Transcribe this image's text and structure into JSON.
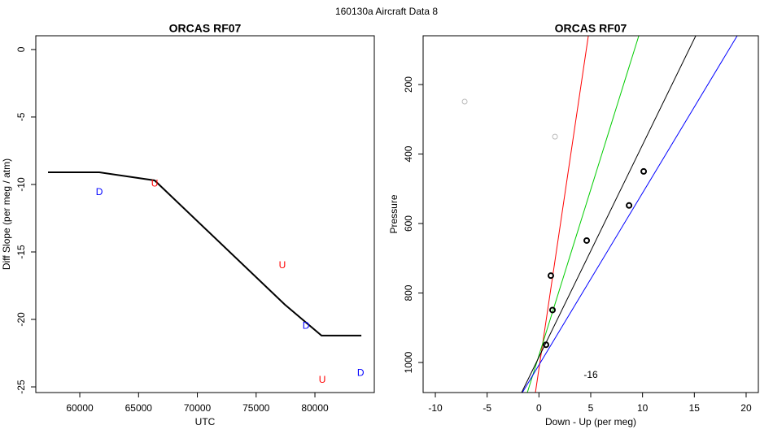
{
  "title": "160130a   Aircraft Data 8",
  "chart_data": [
    {
      "type": "line",
      "title": "ORCAS RF07",
      "xlabel": "UTC",
      "ylabel": "Diff Slope (per meg / atm)",
      "xlim": [
        56260,
        85050
      ],
      "ylim": [
        -25.42,
        1.02
      ],
      "xticks": [
        60000,
        65000,
        70000,
        75000,
        80000
      ],
      "yticks": [
        0,
        -5,
        -10,
        -15,
        -20,
        -25
      ],
      "series": [
        {
          "color": "#000000",
          "x": [
            57300,
            61660,
            66370,
            77440,
            80560,
            83950
          ],
          "values": [
            -9.1,
            -9.1,
            -9.7,
            -18.9,
            -21.2,
            -21.2
          ]
        }
      ],
      "points": {
        "x": [
          61660,
          66370,
          77230,
          79240,
          80630,
          83890
        ],
        "values": [
          -10.6,
          -9.95,
          -16.0,
          -20.5,
          -24.5,
          -24.0
        ],
        "labels": [
          "D",
          "U",
          "U",
          "D",
          "U",
          "D"
        ],
        "colors": [
          "#0000ff",
          "#ff0000",
          "#ff0000",
          "#0000ff",
          "#ff0000",
          "#0000ff"
        ]
      }
    },
    {
      "type": "scatter",
      "title": "ORCAS RF07",
      "xlabel": "Down - Up (per meg)",
      "ylabel": "Pressure",
      "xlim": [
        -11.18,
        21.18
      ],
      "ylim": [
        1086.5,
        59.6
      ],
      "xticks": [
        -10,
        -5,
        0,
        5,
        10,
        15,
        20
      ],
      "yticks": [
        200,
        400,
        600,
        800,
        1000
      ],
      "series": [
        {
          "color": "#bbbbbb",
          "x": [
            -7.17,
            1.55
          ],
          "values": [
            249,
            350
          ]
        },
        {
          "color": "#000000",
          "x": [
            10.11,
            8.7,
            4.61,
            1.15,
            1.31,
            0.68
          ],
          "values": [
            450,
            548,
            649,
            750,
            849,
            949
          ]
        }
      ],
      "lines": [
        {
          "color": "#ff0000",
          "x": [
            -0.34,
            4.77
          ],
          "values": [
            1086.5,
            59.6
          ]
        },
        {
          "color": "#00cc00",
          "x": [
            -1.12,
            9.64
          ],
          "values": [
            1086.5,
            59.6
          ]
        },
        {
          "color": "#000000",
          "x": [
            -1.67,
            15.14
          ],
          "values": [
            1086.5,
            59.6
          ]
        },
        {
          "color": "#0000ff",
          "x": [
            -1.6,
            19.14
          ],
          "values": [
            1086.5,
            59.6
          ]
        }
      ],
      "annotation": "-16"
    }
  ]
}
